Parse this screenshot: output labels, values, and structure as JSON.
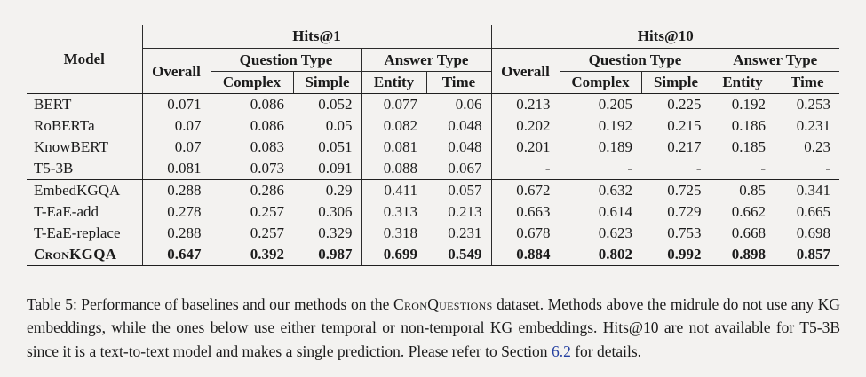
{
  "page": {
    "background": "#f3f2f0",
    "text_color": "#1b1b1b",
    "link_color": "#2540a0",
    "border_color": "#2b2b2b"
  },
  "table": {
    "header": {
      "model": "Model",
      "hits1": "Hits@1",
      "hits10": "Hits@10",
      "overall": "Overall",
      "question_type": "Question Type",
      "answer_type": "Answer Type",
      "complex": "Complex",
      "simple": "Simple",
      "entity": "Entity",
      "time": "Time"
    },
    "rows": [
      {
        "model": "BERT",
        "smallcaps": false,
        "bold": false,
        "group_end": false,
        "values": [
          "0.071",
          "0.086",
          "0.052",
          "0.077",
          "0.06",
          "0.213",
          "0.205",
          "0.225",
          "0.192",
          "0.253"
        ]
      },
      {
        "model": "RoBERTa",
        "smallcaps": false,
        "bold": false,
        "group_end": false,
        "values": [
          "0.07",
          "0.086",
          "0.05",
          "0.082",
          "0.048",
          "0.202",
          "0.192",
          "0.215",
          "0.186",
          "0.231"
        ]
      },
      {
        "model": "KnowBERT",
        "smallcaps": false,
        "bold": false,
        "group_end": false,
        "values": [
          "0.07",
          "0.083",
          "0.051",
          "0.081",
          "0.048",
          "0.201",
          "0.189",
          "0.217",
          "0.185",
          "0.23"
        ]
      },
      {
        "model": "T5-3B",
        "smallcaps": false,
        "bold": false,
        "group_end": true,
        "values": [
          "0.081",
          "0.073",
          "0.091",
          "0.088",
          "0.067",
          "-",
          "-",
          "-",
          "-",
          "-"
        ]
      },
      {
        "model": "EmbedKGQA",
        "smallcaps": false,
        "bold": false,
        "group_end": false,
        "values": [
          "0.288",
          "0.286",
          "0.29",
          "0.411",
          "0.057",
          "0.672",
          "0.632",
          "0.725",
          "0.85",
          "0.341"
        ]
      },
      {
        "model": "T-EaE-add",
        "smallcaps": false,
        "bold": false,
        "group_end": false,
        "values": [
          "0.278",
          "0.257",
          "0.306",
          "0.313",
          "0.213",
          "0.663",
          "0.614",
          "0.729",
          "0.662",
          "0.665"
        ]
      },
      {
        "model": "T-EaE-replace",
        "smallcaps": false,
        "bold": false,
        "group_end": false,
        "values": [
          "0.288",
          "0.257",
          "0.329",
          "0.318",
          "0.231",
          "0.678",
          "0.623",
          "0.753",
          "0.668",
          "0.698"
        ]
      },
      {
        "model": "CronKGQA",
        "smallcaps": true,
        "bold": true,
        "group_end": false,
        "values": [
          "0.647",
          "0.392",
          "0.987",
          "0.699",
          "0.549",
          "0.884",
          "0.802",
          "0.992",
          "0.898",
          "0.857"
        ]
      }
    ]
  },
  "caption": {
    "prefix": "Table 5: Performance of baselines and our methods on the ",
    "dataset_name": "CronQuestions",
    "middle": " dataset. Methods above the midrule do not use any KG embeddings, while the ones below use either temporal or non-temporal KG embeddings. Hits@10 are not available for T5-3B since it is a text-to-text model and makes a single prediction. Please refer to Section ",
    "section_link": "6.2",
    "suffix": " for details."
  }
}
